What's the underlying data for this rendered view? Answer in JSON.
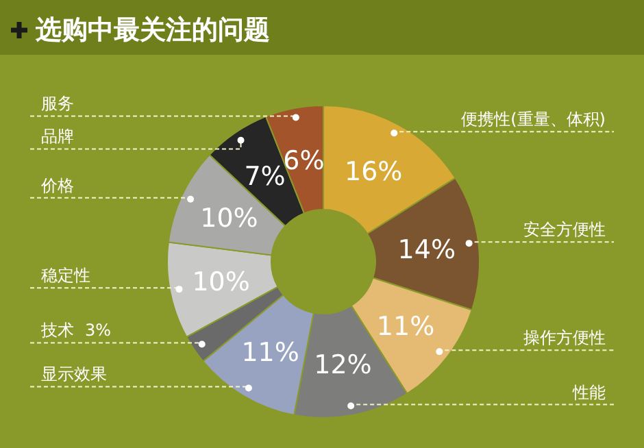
{
  "chart_data": {
    "type": "donut",
    "title": "选购中最关注的问题",
    "categories": [
      "便携性(重量、体积)",
      "安全方便性",
      "操作方便性",
      "性能",
      "显示效果",
      "技术",
      "稳定性",
      "价格",
      "品牌",
      "服务"
    ],
    "values": [
      16,
      14,
      11,
      12,
      11,
      3,
      10,
      10,
      7,
      6
    ],
    "colors": [
      "#d9a935",
      "#7b5430",
      "#e5bb74",
      "#7d7d7b",
      "#97a3c0",
      "#6a6a6a",
      "#c9c9c7",
      "#a9a9a7",
      "#262626",
      "#a4542a"
    ],
    "value_labels": [
      "16%",
      "14%",
      "11%",
      "12%",
      "11%",
      "3%",
      "10%",
      "10%",
      "7%",
      "6%"
    ]
  }
}
